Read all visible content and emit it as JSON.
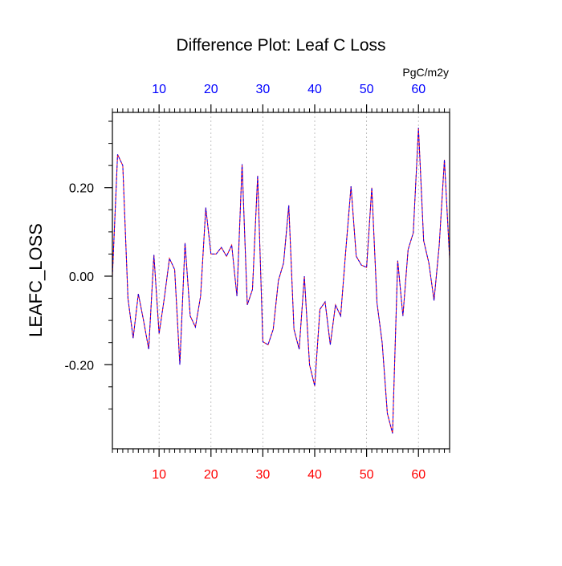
{
  "chart_data": {
    "type": "line",
    "title": "Difference Plot: Leaf C Loss",
    "units": "PgC/m2y",
    "ylabel": "LEAFC_LOSS",
    "xlim": [
      1,
      66
    ],
    "ylim": [
      -0.39,
      0.37
    ],
    "x_ticks": [
      10,
      20,
      30,
      40,
      50,
      60
    ],
    "x_minor_step": 1,
    "y_ticks": [
      -0.2,
      0.0,
      0.2
    ],
    "y_tick_labels": [
      "-0.20",
      "0.00",
      "0.20"
    ],
    "y_minor_ticks": [
      -0.3,
      -0.25,
      -0.15,
      -0.1,
      -0.05,
      0.05,
      0.1,
      0.15,
      0.25,
      0.3,
      0.35
    ],
    "grid": "vertical dashed at major x ticks",
    "colors": {
      "bottom_tick_labels": "#ff0000",
      "top_tick_labels": "#0000ff",
      "line_primary": "#ff0000",
      "line_overlay": "#0000ff"
    },
    "series": [
      {
        "x": [
          1,
          2,
          3,
          4,
          5,
          6,
          7,
          8,
          9,
          10,
          11,
          12,
          13,
          14,
          15,
          16,
          17,
          18,
          19,
          20,
          21,
          22,
          23,
          24,
          25,
          26,
          27,
          28,
          29,
          30,
          31,
          32,
          33,
          34,
          35,
          36,
          37,
          38,
          39,
          40,
          41,
          42,
          43,
          44,
          45,
          46,
          47,
          48,
          49,
          50,
          51,
          52,
          53,
          54,
          55,
          56,
          57,
          58,
          59,
          60,
          61,
          62,
          63,
          64,
          65,
          66
        ],
        "values": [
          0.0,
          0.275,
          0.25,
          -0.05,
          -0.14,
          -0.04,
          -0.1,
          -0.165,
          0.048,
          -0.13,
          -0.05,
          0.04,
          0.015,
          -0.2,
          0.075,
          -0.09,
          -0.115,
          -0.045,
          0.155,
          0.05,
          0.05,
          0.065,
          0.045,
          0.07,
          -0.045,
          0.253,
          -0.065,
          -0.03,
          0.227,
          -0.148,
          -0.155,
          -0.12,
          -0.01,
          0.03,
          0.16,
          -0.12,
          -0.165,
          0.0,
          -0.2,
          -0.248,
          -0.075,
          -0.058,
          -0.155,
          -0.065,
          -0.09,
          0.06,
          0.203,
          0.045,
          0.025,
          0.02,
          0.2,
          -0.06,
          -0.15,
          -0.31,
          -0.355,
          0.035,
          -0.09,
          0.06,
          0.098,
          0.335,
          0.08,
          0.03,
          -0.055,
          0.07,
          0.263,
          0.04
        ]
      }
    ]
  }
}
